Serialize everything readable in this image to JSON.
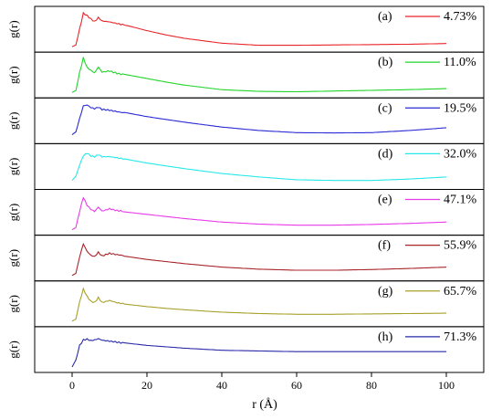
{
  "chart_data": {
    "type": "line",
    "xlabel": "r (Å)",
    "ylabel": "g(r)",
    "xlim": [
      -10,
      110
    ],
    "xticks": [
      "0",
      "20",
      "40",
      "60",
      "80",
      "100"
    ],
    "grid": false,
    "legend_position": "top-right of each panel",
    "panels": [
      {
        "tag": "(a)",
        "name": "4.73%",
        "color": "#e8262a",
        "x": [
          0,
          1,
          2,
          3,
          4,
          5,
          6,
          7,
          8,
          10,
          12,
          15,
          20,
          25,
          30,
          40,
          50,
          60,
          70,
          80,
          90,
          100
        ],
        "y": [
          0.0,
          0.05,
          0.5,
          0.95,
          0.88,
          0.78,
          0.7,
          0.82,
          0.72,
          0.7,
          0.66,
          0.6,
          0.46,
          0.34,
          0.24,
          0.1,
          0.04,
          0.04,
          0.05,
          0.06,
          0.07,
          0.09
        ]
      },
      {
        "tag": "(b)",
        "name": "11.0%",
        "color": "#22d42a",
        "x": [
          0,
          1,
          2,
          3,
          4,
          5,
          6,
          7,
          8,
          10,
          12,
          15,
          20,
          25,
          30,
          40,
          50,
          60,
          70,
          80,
          90,
          100
        ],
        "y": [
          0.0,
          0.05,
          0.55,
          0.98,
          0.7,
          0.62,
          0.55,
          0.72,
          0.58,
          0.62,
          0.56,
          0.5,
          0.4,
          0.3,
          0.21,
          0.08,
          0.03,
          0.02,
          0.04,
          0.06,
          0.08,
          0.11
        ]
      },
      {
        "tag": "(c)",
        "name": "19.5%",
        "color": "#2a2ad6",
        "x": [
          0,
          1,
          2,
          3,
          4,
          5,
          6,
          7,
          8,
          10,
          12,
          15,
          20,
          25,
          30,
          40,
          50,
          60,
          70,
          80,
          90,
          100
        ],
        "y": [
          0.1,
          0.18,
          0.55,
          0.92,
          0.95,
          0.88,
          0.85,
          0.9,
          0.84,
          0.82,
          0.78,
          0.72,
          0.62,
          0.54,
          0.46,
          0.32,
          0.22,
          0.16,
          0.15,
          0.16,
          0.22,
          0.3
        ]
      },
      {
        "tag": "(d)",
        "name": "32.0%",
        "color": "#27e8e8",
        "x": [
          0,
          1,
          2,
          3,
          4,
          5,
          6,
          7,
          8,
          10,
          12,
          15,
          20,
          25,
          30,
          40,
          50,
          60,
          70,
          80,
          90,
          100
        ],
        "y": [
          0.1,
          0.22,
          0.55,
          0.82,
          0.9,
          0.82,
          0.8,
          0.86,
          0.8,
          0.8,
          0.76,
          0.7,
          0.6,
          0.52,
          0.44,
          0.3,
          0.2,
          0.12,
          0.1,
          0.1,
          0.14,
          0.2
        ]
      },
      {
        "tag": "(e)",
        "name": "47.1%",
        "color": "#e83ae8",
        "x": [
          0,
          1,
          2,
          3,
          4,
          5,
          6,
          7,
          8,
          10,
          12,
          15,
          20,
          25,
          30,
          40,
          50,
          60,
          70,
          80,
          90,
          100
        ],
        "y": [
          0.0,
          0.06,
          0.55,
          0.95,
          0.72,
          0.6,
          0.54,
          0.66,
          0.54,
          0.6,
          0.54,
          0.5,
          0.44,
          0.38,
          0.32,
          0.22,
          0.16,
          0.13,
          0.13,
          0.15,
          0.18,
          0.22
        ]
      },
      {
        "tag": "(f)",
        "name": "55.9%",
        "color": "#a8262a",
        "x": [
          0,
          1,
          2,
          3,
          4,
          5,
          6,
          7,
          8,
          10,
          12,
          15,
          20,
          25,
          30,
          40,
          50,
          60,
          70,
          80,
          90,
          100
        ],
        "y": [
          0.0,
          0.06,
          0.55,
          0.92,
          0.7,
          0.58,
          0.54,
          0.66,
          0.55,
          0.62,
          0.58,
          0.54,
          0.46,
          0.4,
          0.34,
          0.24,
          0.18,
          0.15,
          0.15,
          0.17,
          0.2,
          0.24
        ]
      },
      {
        "tag": "(g)",
        "name": "65.7%",
        "color": "#a8a02a",
        "x": [
          0,
          1,
          2,
          3,
          4,
          5,
          6,
          7,
          8,
          10,
          12,
          15,
          20,
          25,
          30,
          40,
          50,
          60,
          70,
          80,
          90,
          100
        ],
        "y": [
          0.0,
          0.06,
          0.55,
          0.92,
          0.7,
          0.56,
          0.52,
          0.66,
          0.52,
          0.58,
          0.52,
          0.48,
          0.42,
          0.37,
          0.33,
          0.26,
          0.22,
          0.2,
          0.2,
          0.21,
          0.22,
          0.23
        ]
      },
      {
        "tag": "(h)",
        "name": "71.3%",
        "color": "#2a2aa8",
        "x": [
          0,
          1,
          2,
          3,
          4,
          5,
          6,
          7,
          8,
          10,
          12,
          15,
          20,
          25,
          30,
          40,
          50,
          60,
          70,
          80,
          90,
          100
        ],
        "y": [
          0.0,
          0.2,
          0.6,
          0.76,
          0.78,
          0.74,
          0.76,
          0.8,
          0.76,
          0.74,
          0.72,
          0.68,
          0.62,
          0.58,
          0.54,
          0.48,
          0.46,
          0.44,
          0.44,
          0.44,
          0.44,
          0.44
        ]
      }
    ]
  }
}
